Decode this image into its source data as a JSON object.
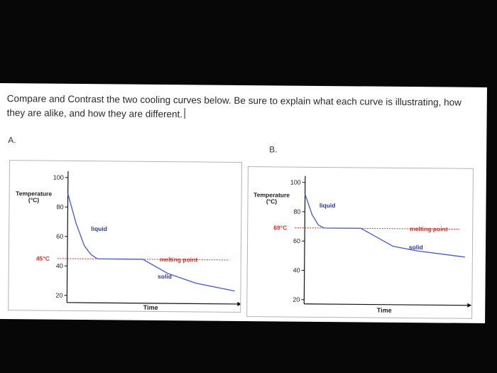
{
  "question": {
    "text": "Compare and Contrast the two cooling curves below. Be sure to explain what each curve is illustrating, how they are alike, and how they are different."
  },
  "labels": {
    "a": "A.",
    "b": "B."
  },
  "colors": {
    "curve": "#4f63d6",
    "reference": "#e0302a",
    "axis": "#111111"
  },
  "chart_data": [
    {
      "type": "line",
      "label": "A.",
      "ylabel": "Temperature\n(°C)",
      "xlabel": "Time",
      "yticks": [
        100,
        80,
        60,
        40,
        20
      ],
      "ylim": [
        18,
        102
      ],
      "xlim": [
        0,
        10
      ],
      "series": [
        {
          "values": [
            [
              0,
              89
            ],
            [
              0.5,
              69
            ],
            [
              1,
              54
            ],
            [
              1.4,
              48
            ],
            [
              1.8,
              45
            ],
            [
              4.5,
              45
            ],
            [
              6,
              35.5
            ],
            [
              7.7,
              29
            ],
            [
              10,
              24
            ]
          ]
        }
      ],
      "reference_line": {
        "y": 45,
        "label": "45°C",
        "text": "melting point"
      },
      "annotations": [
        {
          "text": "liquid",
          "x": 1.4,
          "y": 64
        },
        {
          "text": "solid",
          "x": 5.4,
          "y": 32
        }
      ]
    },
    {
      "type": "line",
      "label": "B.",
      "ylabel": "Temperature\n(°C)",
      "xlabel": "Time",
      "yticks": [
        100,
        80,
        60,
        40,
        20
      ],
      "ylim": [
        18,
        102
      ],
      "xlim": [
        0,
        10
      ],
      "series": [
        {
          "values": [
            [
              0,
              92
            ],
            [
              0.45,
              78
            ],
            [
              0.85,
              71
            ],
            [
              1.2,
              69
            ],
            [
              3.5,
              69
            ],
            [
              4.5,
              63
            ],
            [
              5.5,
              57
            ],
            [
              7,
              54
            ],
            [
              10,
              50
            ]
          ]
        }
      ],
      "reference_line": {
        "y": 69,
        "label": "69°C",
        "text": "melting point"
      },
      "annotations": [
        {
          "text": "liquid",
          "x": 0.9,
          "y": 83
        },
        {
          "text": "solid",
          "x": 6.5,
          "y": 55
        }
      ]
    }
  ]
}
